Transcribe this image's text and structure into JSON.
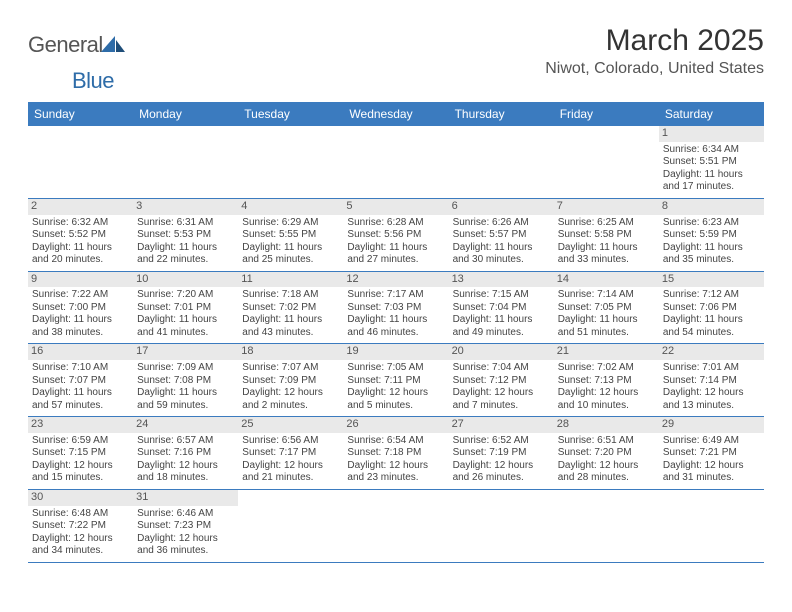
{
  "brand": {
    "name_a": "General",
    "name_b": "Blue"
  },
  "title": "March 2025",
  "location": "Niwot, Colorado, United States",
  "colors": {
    "header_bg": "#3b7bbf",
    "header_text": "#ffffff",
    "daynum_bg": "#e9e9e9",
    "week_border": "#3b7bbf",
    "brand_blue": "#2e6ca8",
    "text": "#444444"
  },
  "day_labels": [
    "Sunday",
    "Monday",
    "Tuesday",
    "Wednesday",
    "Thursday",
    "Friday",
    "Saturday"
  ],
  "weeks": [
    [
      null,
      null,
      null,
      null,
      null,
      null,
      {
        "n": "1",
        "sunrise": "Sunrise: 6:34 AM",
        "sunset": "Sunset: 5:51 PM",
        "d1": "Daylight: 11 hours",
        "d2": "and 17 minutes."
      }
    ],
    [
      {
        "n": "2",
        "sunrise": "Sunrise: 6:32 AM",
        "sunset": "Sunset: 5:52 PM",
        "d1": "Daylight: 11 hours",
        "d2": "and 20 minutes."
      },
      {
        "n": "3",
        "sunrise": "Sunrise: 6:31 AM",
        "sunset": "Sunset: 5:53 PM",
        "d1": "Daylight: 11 hours",
        "d2": "and 22 minutes."
      },
      {
        "n": "4",
        "sunrise": "Sunrise: 6:29 AM",
        "sunset": "Sunset: 5:55 PM",
        "d1": "Daylight: 11 hours",
        "d2": "and 25 minutes."
      },
      {
        "n": "5",
        "sunrise": "Sunrise: 6:28 AM",
        "sunset": "Sunset: 5:56 PM",
        "d1": "Daylight: 11 hours",
        "d2": "and 27 minutes."
      },
      {
        "n": "6",
        "sunrise": "Sunrise: 6:26 AM",
        "sunset": "Sunset: 5:57 PM",
        "d1": "Daylight: 11 hours",
        "d2": "and 30 minutes."
      },
      {
        "n": "7",
        "sunrise": "Sunrise: 6:25 AM",
        "sunset": "Sunset: 5:58 PM",
        "d1": "Daylight: 11 hours",
        "d2": "and 33 minutes."
      },
      {
        "n": "8",
        "sunrise": "Sunrise: 6:23 AM",
        "sunset": "Sunset: 5:59 PM",
        "d1": "Daylight: 11 hours",
        "d2": "and 35 minutes."
      }
    ],
    [
      {
        "n": "9",
        "sunrise": "Sunrise: 7:22 AM",
        "sunset": "Sunset: 7:00 PM",
        "d1": "Daylight: 11 hours",
        "d2": "and 38 minutes."
      },
      {
        "n": "10",
        "sunrise": "Sunrise: 7:20 AM",
        "sunset": "Sunset: 7:01 PM",
        "d1": "Daylight: 11 hours",
        "d2": "and 41 minutes."
      },
      {
        "n": "11",
        "sunrise": "Sunrise: 7:18 AM",
        "sunset": "Sunset: 7:02 PM",
        "d1": "Daylight: 11 hours",
        "d2": "and 43 minutes."
      },
      {
        "n": "12",
        "sunrise": "Sunrise: 7:17 AM",
        "sunset": "Sunset: 7:03 PM",
        "d1": "Daylight: 11 hours",
        "d2": "and 46 minutes."
      },
      {
        "n": "13",
        "sunrise": "Sunrise: 7:15 AM",
        "sunset": "Sunset: 7:04 PM",
        "d1": "Daylight: 11 hours",
        "d2": "and 49 minutes."
      },
      {
        "n": "14",
        "sunrise": "Sunrise: 7:14 AM",
        "sunset": "Sunset: 7:05 PM",
        "d1": "Daylight: 11 hours",
        "d2": "and 51 minutes."
      },
      {
        "n": "15",
        "sunrise": "Sunrise: 7:12 AM",
        "sunset": "Sunset: 7:06 PM",
        "d1": "Daylight: 11 hours",
        "d2": "and 54 minutes."
      }
    ],
    [
      {
        "n": "16",
        "sunrise": "Sunrise: 7:10 AM",
        "sunset": "Sunset: 7:07 PM",
        "d1": "Daylight: 11 hours",
        "d2": "and 57 minutes."
      },
      {
        "n": "17",
        "sunrise": "Sunrise: 7:09 AM",
        "sunset": "Sunset: 7:08 PM",
        "d1": "Daylight: 11 hours",
        "d2": "and 59 minutes."
      },
      {
        "n": "18",
        "sunrise": "Sunrise: 7:07 AM",
        "sunset": "Sunset: 7:09 PM",
        "d1": "Daylight: 12 hours",
        "d2": "and 2 minutes."
      },
      {
        "n": "19",
        "sunrise": "Sunrise: 7:05 AM",
        "sunset": "Sunset: 7:11 PM",
        "d1": "Daylight: 12 hours",
        "d2": "and 5 minutes."
      },
      {
        "n": "20",
        "sunrise": "Sunrise: 7:04 AM",
        "sunset": "Sunset: 7:12 PM",
        "d1": "Daylight: 12 hours",
        "d2": "and 7 minutes."
      },
      {
        "n": "21",
        "sunrise": "Sunrise: 7:02 AM",
        "sunset": "Sunset: 7:13 PM",
        "d1": "Daylight: 12 hours",
        "d2": "and 10 minutes."
      },
      {
        "n": "22",
        "sunrise": "Sunrise: 7:01 AM",
        "sunset": "Sunset: 7:14 PM",
        "d1": "Daylight: 12 hours",
        "d2": "and 13 minutes."
      }
    ],
    [
      {
        "n": "23",
        "sunrise": "Sunrise: 6:59 AM",
        "sunset": "Sunset: 7:15 PM",
        "d1": "Daylight: 12 hours",
        "d2": "and 15 minutes."
      },
      {
        "n": "24",
        "sunrise": "Sunrise: 6:57 AM",
        "sunset": "Sunset: 7:16 PM",
        "d1": "Daylight: 12 hours",
        "d2": "and 18 minutes."
      },
      {
        "n": "25",
        "sunrise": "Sunrise: 6:56 AM",
        "sunset": "Sunset: 7:17 PM",
        "d1": "Daylight: 12 hours",
        "d2": "and 21 minutes."
      },
      {
        "n": "26",
        "sunrise": "Sunrise: 6:54 AM",
        "sunset": "Sunset: 7:18 PM",
        "d1": "Daylight: 12 hours",
        "d2": "and 23 minutes."
      },
      {
        "n": "27",
        "sunrise": "Sunrise: 6:52 AM",
        "sunset": "Sunset: 7:19 PM",
        "d1": "Daylight: 12 hours",
        "d2": "and 26 minutes."
      },
      {
        "n": "28",
        "sunrise": "Sunrise: 6:51 AM",
        "sunset": "Sunset: 7:20 PM",
        "d1": "Daylight: 12 hours",
        "d2": "and 28 minutes."
      },
      {
        "n": "29",
        "sunrise": "Sunrise: 6:49 AM",
        "sunset": "Sunset: 7:21 PM",
        "d1": "Daylight: 12 hours",
        "d2": "and 31 minutes."
      }
    ],
    [
      {
        "n": "30",
        "sunrise": "Sunrise: 6:48 AM",
        "sunset": "Sunset: 7:22 PM",
        "d1": "Daylight: 12 hours",
        "d2": "and 34 minutes."
      },
      {
        "n": "31",
        "sunrise": "Sunrise: 6:46 AM",
        "sunset": "Sunset: 7:23 PM",
        "d1": "Daylight: 12 hours",
        "d2": "and 36 minutes."
      },
      null,
      null,
      null,
      null,
      null
    ]
  ]
}
